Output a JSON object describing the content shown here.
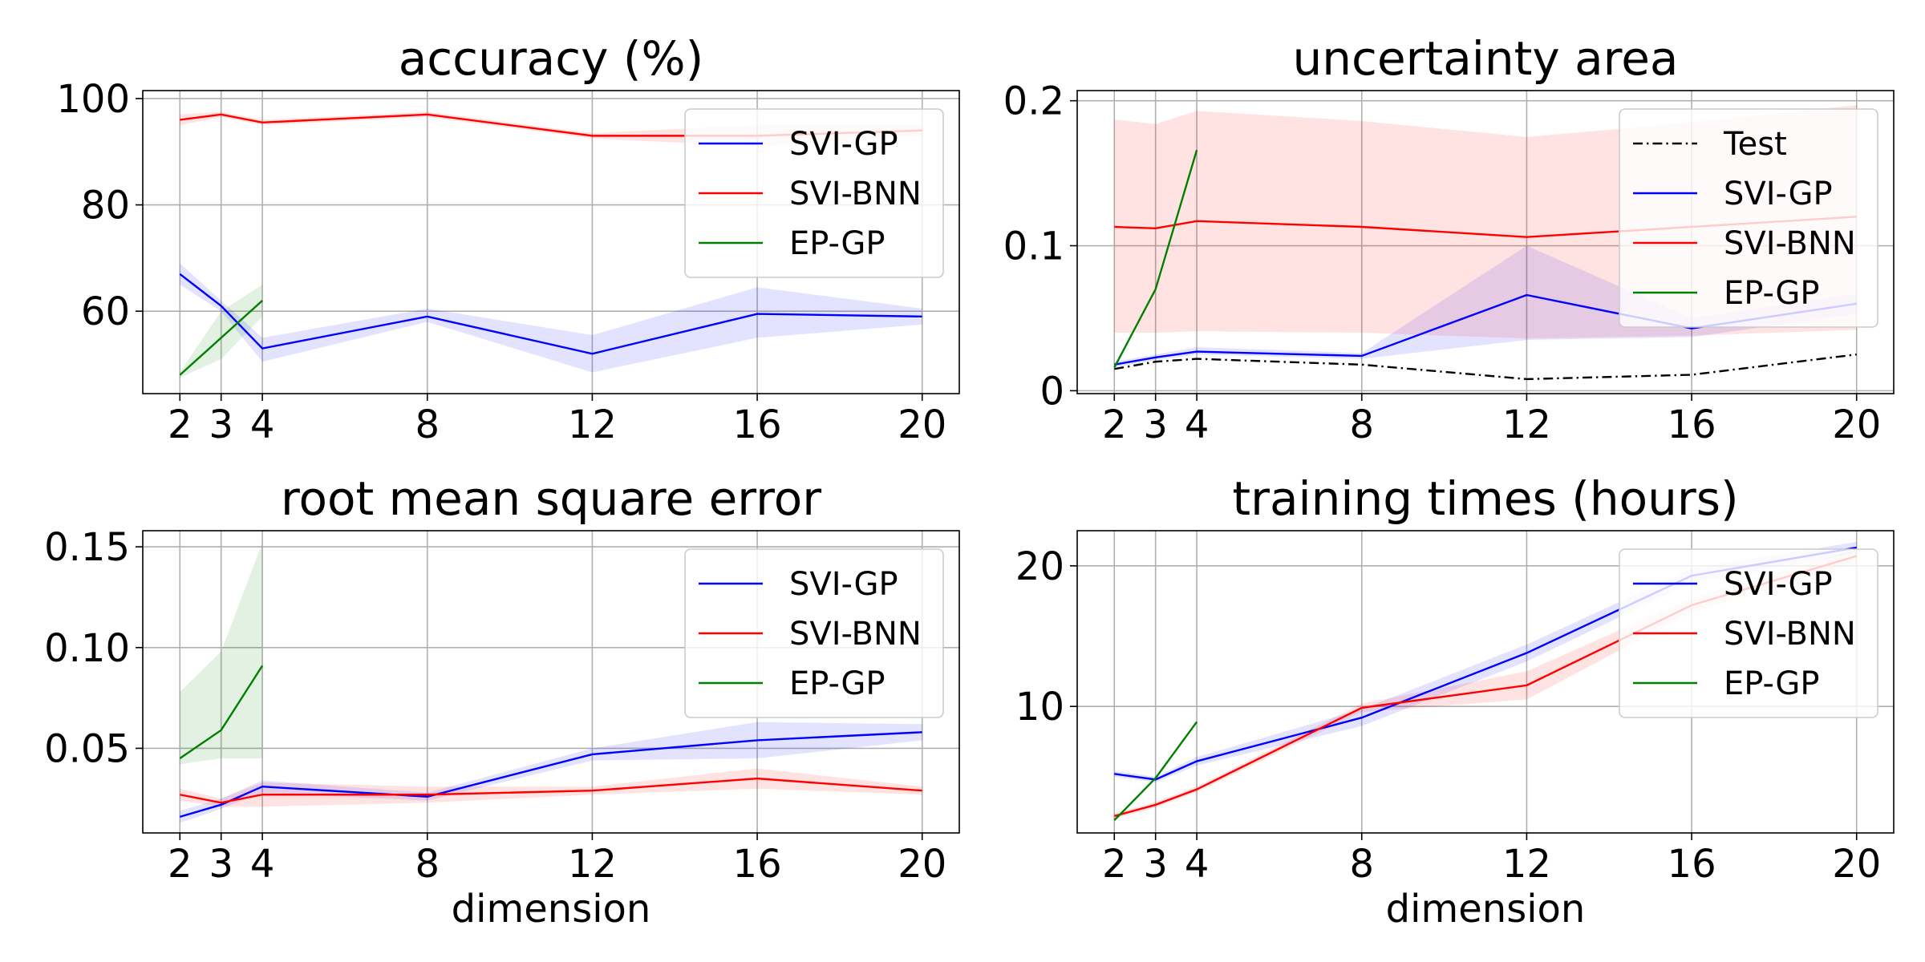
{
  "figure": {
    "background": "#ffffff"
  },
  "colors": {
    "svi_gp": "#0000ff",
    "svi_bnn": "#ff0000",
    "ep_gp": "#007f00",
    "test": "#000000",
    "svi_gp_band": "#0000ff",
    "svi_bnn_band": "#ff0000",
    "ep_gp_band": "#007f00",
    "grid": "#b0b0b0"
  },
  "chart_data": [
    {
      "type": "line",
      "title": "accuracy (%)",
      "xlabel": "",
      "ylabel": "",
      "xticks": [
        2,
        3,
        4,
        8,
        12,
        16,
        20
      ],
      "yticks": [
        60,
        80,
        100
      ],
      "xlim": [
        1.1,
        20.9
      ],
      "ylim": [
        44.5,
        101.5
      ],
      "grid": true,
      "legend_position": "top-right",
      "series": [
        {
          "name": "SVI-GP",
          "color": "#0000ff",
          "x": [
            2,
            3,
            4,
            8,
            12,
            16,
            20
          ],
          "y": [
            67,
            61,
            53,
            59,
            52,
            59.5,
            59
          ],
          "lower": [
            65,
            60,
            50.5,
            58,
            48.5,
            55,
            57.5
          ],
          "upper": [
            69,
            62,
            55,
            60.5,
            55.5,
            64.5,
            60.5
          ]
        },
        {
          "name": "SVI-BNN",
          "color": "#ff0000",
          "x": [
            2,
            3,
            4,
            8,
            12,
            16,
            20
          ],
          "y": [
            96,
            97,
            95.5,
            97,
            93,
            93,
            94
          ],
          "lower": [
            95,
            96.5,
            95,
            96.5,
            92.5,
            91,
            93
          ],
          "upper": [
            97,
            97.5,
            96,
            97.5,
            93.5,
            95,
            95
          ]
        },
        {
          "name": "EP-GP",
          "color": "#007f00",
          "x": [
            2,
            3,
            4
          ],
          "y": [
            48,
            55,
            62
          ],
          "lower": [
            47.5,
            51,
            59
          ],
          "upper": [
            48.5,
            60,
            65
          ]
        }
      ]
    },
    {
      "type": "line",
      "title": "uncertainty area",
      "xlabel": "",
      "ylabel": "",
      "xticks": [
        2,
        3,
        4,
        8,
        12,
        16,
        20
      ],
      "yticks": [
        0.0,
        0.1,
        0.2
      ],
      "xlim": [
        1.1,
        20.9
      ],
      "ylim": [
        -0.002,
        0.207
      ],
      "grid": true,
      "legend_position": "top-right",
      "series": [
        {
          "name": "Test",
          "color": "#000000",
          "dash": "dashdot",
          "x": [
            2,
            3,
            4,
            8,
            12,
            16,
            20
          ],
          "y": [
            0.015,
            0.02,
            0.022,
            0.018,
            0.008,
            0.011,
            0.025
          ]
        },
        {
          "name": "SVI-GP",
          "color": "#0000ff",
          "x": [
            2,
            3,
            4,
            8,
            12,
            16,
            20
          ],
          "y": [
            0.018,
            0.023,
            0.027,
            0.024,
            0.066,
            0.043,
            0.06
          ],
          "lower": [
            0.016,
            0.021,
            0.025,
            0.022,
            0.035,
            0.037,
            0.053
          ],
          "upper": [
            0.02,
            0.025,
            0.03,
            0.026,
            0.1,
            0.05,
            0.067
          ]
        },
        {
          "name": "SVI-BNN",
          "color": "#ff0000",
          "x": [
            2,
            3,
            4,
            8,
            12,
            16,
            20
          ],
          "y": [
            0.113,
            0.112,
            0.117,
            0.113,
            0.106,
            0.113,
            0.12
          ],
          "lower": [
            0.04,
            0.04,
            0.041,
            0.04,
            0.036,
            0.038,
            0.042
          ],
          "upper": [
            0.187,
            0.184,
            0.193,
            0.186,
            0.175,
            0.185,
            0.197
          ]
        },
        {
          "name": "EP-GP",
          "color": "#007f00",
          "x": [
            2,
            3,
            4
          ],
          "y": [
            0.016,
            0.07,
            0.166
          ],
          "lower": [
            0.016,
            0.07,
            0.166
          ],
          "upper": [
            0.016,
            0.07,
            0.166
          ]
        }
      ]
    },
    {
      "type": "line",
      "title": "root mean square error",
      "xlabel": "dimension",
      "ylabel": "",
      "xticks": [
        2,
        3,
        4,
        8,
        12,
        16,
        20
      ],
      "yticks": [
        0.05,
        0.1,
        0.15
      ],
      "ytick_labels": [
        "0.05",
        "0.10",
        "0.15"
      ],
      "xlim": [
        1.1,
        20.9
      ],
      "ylim": [
        0.008,
        0.158
      ],
      "grid": true,
      "legend_position": "top-right",
      "series": [
        {
          "name": "SVI-GP",
          "color": "#0000ff",
          "x": [
            2,
            3,
            4,
            8,
            12,
            16,
            20
          ],
          "y": [
            0.016,
            0.022,
            0.031,
            0.026,
            0.047,
            0.054,
            0.058
          ],
          "lower": [
            0.013,
            0.02,
            0.028,
            0.024,
            0.044,
            0.045,
            0.054
          ],
          "upper": [
            0.019,
            0.025,
            0.034,
            0.028,
            0.05,
            0.063,
            0.062
          ]
        },
        {
          "name": "SVI-BNN",
          "color": "#ff0000",
          "x": [
            2,
            3,
            4,
            8,
            12,
            16,
            20
          ],
          "y": [
            0.027,
            0.023,
            0.027,
            0.027,
            0.029,
            0.035,
            0.029
          ],
          "lower": [
            0.024,
            0.021,
            0.021,
            0.023,
            0.027,
            0.03,
            0.027
          ],
          "upper": [
            0.03,
            0.025,
            0.033,
            0.031,
            0.031,
            0.04,
            0.031
          ]
        },
        {
          "name": "EP-GP",
          "color": "#007f00",
          "x": [
            2,
            3,
            4
          ],
          "y": [
            0.045,
            0.059,
            0.091
          ],
          "lower": [
            0.042,
            0.045,
            0.045
          ],
          "upper": [
            0.078,
            0.098,
            0.152
          ]
        }
      ]
    },
    {
      "type": "line",
      "title": "training times (hours)",
      "xlabel": "dimension",
      "ylabel": "",
      "xticks": [
        2,
        3,
        4,
        8,
        12,
        16,
        20
      ],
      "yticks": [
        10,
        20
      ],
      "xlim": [
        1.1,
        20.9
      ],
      "ylim": [
        1.0,
        22.5
      ],
      "grid": true,
      "legend_position": "top-right",
      "series": [
        {
          "name": "SVI-GP",
          "color": "#0000ff",
          "x": [
            2,
            3,
            4,
            8,
            12,
            16,
            20
          ],
          "y": [
            5.2,
            4.8,
            6.1,
            9.2,
            13.8,
            19.3,
            21.3
          ],
          "lower": [
            5.0,
            4.6,
            5.8,
            8.6,
            13.2,
            18.8,
            20.9
          ],
          "upper": [
            5.4,
            5.0,
            6.4,
            9.8,
            14.4,
            19.8,
            21.7
          ]
        },
        {
          "name": "SVI-BNN",
          "color": "#ff0000",
          "x": [
            2,
            3,
            4,
            8,
            12,
            16,
            20
          ],
          "y": [
            2.2,
            3.0,
            4.1,
            9.9,
            11.5,
            17.2,
            20.7
          ],
          "lower": [
            2.0,
            2.8,
            3.9,
            9.6,
            10.5,
            16.7,
            20.2
          ],
          "upper": [
            2.4,
            3.2,
            4.3,
            10.2,
            12.5,
            17.7,
            21.2
          ]
        },
        {
          "name": "EP-GP",
          "color": "#007f00",
          "x": [
            2,
            3,
            4
          ],
          "y": [
            1.9,
            4.9,
            8.9
          ],
          "lower": [
            1.9,
            4.9,
            8.9
          ],
          "upper": [
            1.9,
            4.9,
            8.9
          ]
        }
      ]
    }
  ]
}
